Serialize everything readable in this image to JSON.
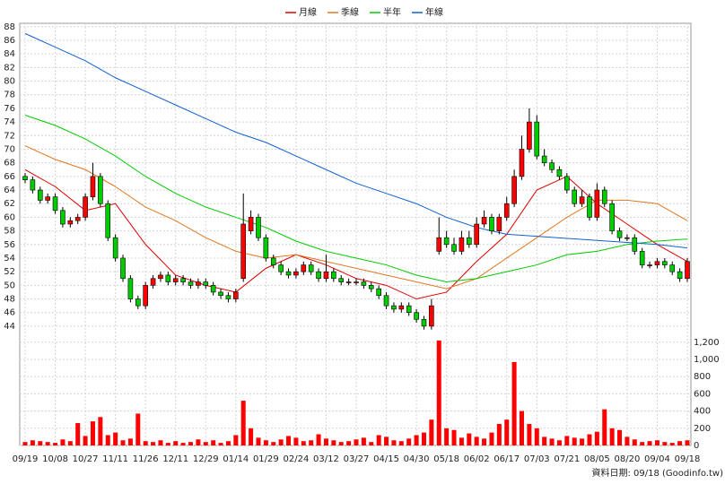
{
  "chart_data": {
    "type": "candlestick",
    "categories": [
      "09/19",
      null,
      null,
      null,
      "10/08",
      null,
      null,
      null,
      "10/27",
      null,
      null,
      null,
      "11/11",
      null,
      null,
      null,
      "11/26",
      null,
      null,
      null,
      "12/11",
      null,
      null,
      null,
      "12/29",
      null,
      null,
      null,
      "01/14",
      null,
      null,
      null,
      "01/29",
      null,
      null,
      null,
      "02/24",
      null,
      null,
      null,
      "03/12",
      null,
      null,
      null,
      "03/27",
      null,
      null,
      null,
      "04/15",
      null,
      null,
      null,
      "04/30",
      null,
      null,
      null,
      "05/18",
      null,
      null,
      null,
      "06/02",
      null,
      null,
      null,
      "06/17",
      null,
      null,
      null,
      "07/03",
      null,
      null,
      null,
      "07/21",
      null,
      null,
      null,
      "08/05",
      null,
      null,
      null,
      "08/20",
      null,
      null,
      null,
      "09/04",
      null,
      null,
      null,
      "09/18"
    ],
    "open": [
      66,
      65.5,
      64,
      62.5,
      63,
      61,
      59,
      59.5,
      60,
      63,
      66,
      62,
      57,
      54,
      51,
      48,
      47,
      50,
      51,
      51.5,
      50.5,
      51,
      50.5,
      50,
      50.5,
      50,
      49,
      48.5,
      48,
      51,
      58,
      60,
      57,
      54,
      53,
      52,
      51.5,
      52,
      53,
      52,
      51,
      52,
      51,
      50.5,
      50.5,
      50.5,
      50,
      49.5,
      48.5,
      47,
      46.5,
      47,
      46,
      45,
      44,
      55,
      57,
      56,
      55,
      57,
      56,
      59,
      60,
      58,
      60,
      62,
      66,
      70,
      74,
      69,
      68,
      67,
      66,
      64,
      62,
      63,
      60,
      64,
      62,
      58,
      57,
      57,
      55,
      53,
      53,
      53.5,
      53,
      52,
      51
    ],
    "high": [
      66.5,
      66,
      64.5,
      63.5,
      63.5,
      61.5,
      60,
      60.5,
      63.5,
      68,
      66.5,
      62.5,
      57.5,
      54.5,
      51.5,
      48.5,
      50.5,
      51.5,
      52,
      52,
      51.5,
      51.5,
      51,
      51,
      51,
      50.5,
      49.5,
      49,
      49.5,
      63.5,
      61,
      60.5,
      57.5,
      54.5,
      53.5,
      52.5,
      52.5,
      53.5,
      53.5,
      52.5,
      54.5,
      52.5,
      51.5,
      51,
      51,
      51,
      50.5,
      50,
      49,
      47.5,
      47.5,
      47.5,
      46.5,
      45.5,
      48,
      60,
      58,
      57,
      58,
      58,
      60,
      61,
      60.5,
      60.5,
      63,
      67,
      72,
      76,
      75,
      70,
      68.5,
      67.5,
      66.5,
      64.5,
      64,
      63.5,
      65,
      64.5,
      62.5,
      58.5,
      57.5,
      57.5,
      55.5,
      53.5,
      54,
      54,
      53.5,
      52.5,
      54
    ],
    "low": [
      65,
      63.5,
      62,
      62,
      60.5,
      58.5,
      58.5,
      59,
      59.5,
      62.5,
      61.5,
      56.5,
      53.5,
      50.5,
      47.5,
      46.5,
      46.5,
      49.5,
      50.5,
      50,
      50,
      50,
      49.5,
      49.5,
      49.5,
      48.5,
      48,
      47.5,
      47.5,
      50.5,
      57.5,
      56.5,
      53.5,
      52.5,
      51.5,
      51,
      51,
      51.5,
      51.5,
      50.5,
      50.5,
      50.5,
      50,
      50,
      50,
      49.5,
      49,
      48,
      46.5,
      46,
      46,
      45.5,
      44.5,
      43.5,
      43.5,
      54.5,
      55.5,
      54.5,
      54.5,
      55.5,
      55.5,
      58.5,
      57.5,
      57.5,
      59.5,
      61.5,
      65.5,
      69.5,
      68.5,
      67.5,
      66.5,
      65.5,
      63.5,
      61.5,
      61.5,
      59.5,
      59.5,
      61.5,
      57.5,
      56.5,
      56.5,
      54.5,
      52.5,
      52.5,
      52.5,
      52.5,
      51.5,
      50.5,
      50.5
    ],
    "close": [
      65.5,
      64,
      62.5,
      63,
      61,
      59,
      59.5,
      60,
      63,
      66,
      62,
      57,
      54,
      51,
      48,
      47,
      50,
      51,
      51.5,
      50.5,
      51,
      50.5,
      50,
      50.5,
      50,
      49,
      48.5,
      48,
      49,
      59,
      60,
      57,
      54,
      53,
      52,
      51.5,
      52,
      53,
      52,
      51,
      52,
      51,
      50.5,
      50.5,
      50.5,
      50,
      49.5,
      48.5,
      47,
      46.5,
      47,
      46,
      45,
      44,
      47,
      57,
      56,
      55,
      57,
      56,
      59,
      60,
      58,
      60,
      62,
      66,
      70,
      74,
      69,
      68,
      67,
      66,
      64,
      62,
      63,
      60,
      64,
      62,
      58,
      57,
      57,
      55,
      53,
      53,
      53.5,
      53,
      52,
      51,
      53.5
    ],
    "up_color": "#ff0000",
    "down_color": "#00cc00",
    "ylim": [
      43,
      88.5
    ],
    "yticks": [
      44,
      46,
      48,
      50,
      52,
      54,
      56,
      58,
      60,
      62,
      64,
      66,
      68,
      70,
      72,
      74,
      76,
      78,
      80,
      82,
      84,
      86,
      88
    ],
    "grid": true,
    "series": [
      {
        "name": "月線",
        "color": "#e00000",
        "x": [
          0,
          4,
          8,
          12,
          16,
          20,
          24,
          28,
          32,
          36,
          40,
          44,
          48,
          52,
          56,
          60,
          64,
          68,
          72,
          76,
          80,
          84,
          88
        ],
        "values": [
          67,
          64.5,
          61,
          62,
          56,
          51.5,
          50,
          49,
          52.5,
          54.5,
          53,
          51,
          50,
          48,
          49,
          53.5,
          57.5,
          64,
          66,
          62,
          59,
          56,
          53.5
        ]
      },
      {
        "name": "季線",
        "color": "#e07820",
        "x": [
          0,
          4,
          8,
          12,
          16,
          20,
          24,
          28,
          32,
          36,
          40,
          44,
          48,
          52,
          56,
          60,
          64,
          68,
          72,
          76,
          80,
          84,
          88
        ],
        "values": [
          70.5,
          68.5,
          67,
          64.5,
          61.5,
          59.5,
          57,
          55,
          54,
          54.5,
          53.5,
          52.5,
          51.5,
          50.5,
          49.5,
          51,
          54,
          57,
          60,
          62.5,
          62.5,
          62,
          59.5
        ]
      },
      {
        "name": "半年",
        "color": "#00cc00",
        "x": [
          0,
          4,
          8,
          12,
          16,
          20,
          24,
          28,
          32,
          36,
          40,
          44,
          48,
          52,
          56,
          60,
          64,
          68,
          72,
          76,
          80,
          84,
          88
        ],
        "values": [
          75,
          73.5,
          71.5,
          69,
          66,
          63.5,
          61.5,
          60,
          58.5,
          56.5,
          55,
          54,
          53,
          51.5,
          50.5,
          51,
          52,
          53,
          54.5,
          55,
          56,
          56.5,
          56.8
        ]
      },
      {
        "name": "年線",
        "color": "#1060d0",
        "x": [
          0,
          4,
          8,
          12,
          16,
          20,
          24,
          28,
          32,
          36,
          40,
          44,
          48,
          52,
          56,
          60,
          64,
          68,
          72,
          76,
          80,
          84,
          88
        ],
        "values": [
          87,
          85,
          83,
          80.5,
          78.5,
          76.5,
          74.5,
          72.5,
          71,
          69,
          67,
          65,
          63.5,
          62,
          60,
          58.5,
          57.5,
          57.2,
          56.9,
          56.6,
          56.3,
          56,
          55.5
        ]
      }
    ],
    "volume": {
      "color": "#ff0000",
      "ylim": [
        0,
        1250
      ],
      "yticks": [
        0,
        200,
        400,
        600,
        800,
        {
          "value": 1000,
          "label": "1,000"
        },
        {
          "value": 1200,
          "label": "1,200"
        }
      ],
      "values": [
        40,
        60,
        50,
        40,
        30,
        70,
        50,
        260,
        110,
        280,
        330,
        120,
        150,
        60,
        80,
        370,
        50,
        40,
        60,
        30,
        50,
        30,
        40,
        70,
        40,
        60,
        30,
        50,
        120,
        520,
        200,
        90,
        60,
        40,
        70,
        110,
        90,
        50,
        60,
        130,
        80,
        60,
        40,
        50,
        70,
        90,
        40,
        120,
        100,
        60,
        50,
        80,
        120,
        150,
        300,
        1220,
        200,
        180,
        90,
        140,
        100,
        80,
        150,
        250,
        300,
        970,
        400,
        250,
        200,
        100,
        80,
        60,
        110,
        90,
        80,
        130,
        160,
        420,
        200,
        180,
        100,
        70,
        40,
        50,
        60,
        40,
        30,
        50,
        60
      ]
    },
    "footer": "資料日期: 09/18 (Goodinfo.tw)"
  }
}
